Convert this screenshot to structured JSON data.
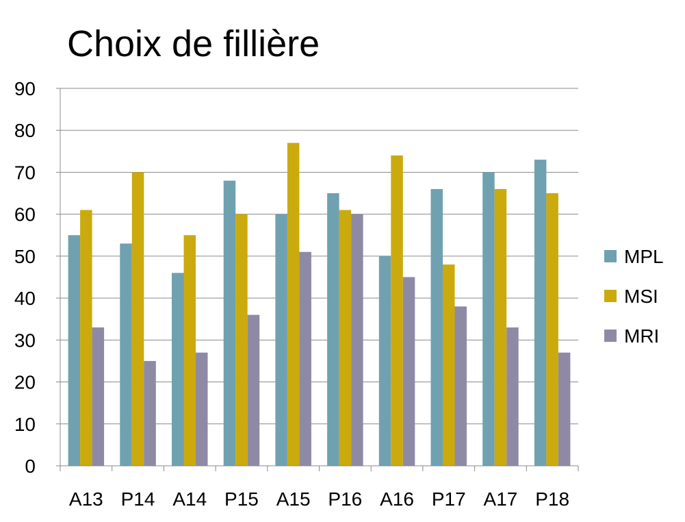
{
  "chart_data": {
    "type": "bar",
    "title": "Choix de fillière",
    "xlabel": "",
    "ylabel": "",
    "categories": [
      "A13",
      "P14",
      "A14",
      "P15",
      "A15",
      "P16",
      "A16",
      "P17",
      "A17",
      "P18"
    ],
    "series": [
      {
        "name": "MPL",
        "color": "#6fa1b1",
        "values": [
          55,
          53,
          46,
          68,
          60,
          65,
          50,
          66,
          70,
          73
        ]
      },
      {
        "name": "MSI",
        "color": "#cbaa0d",
        "values": [
          61,
          70,
          55,
          60,
          77,
          61,
          74,
          48,
          66,
          65
        ]
      },
      {
        "name": "MRI",
        "color": "#8e8aa5",
        "values": [
          33,
          25,
          27,
          36,
          51,
          60,
          45,
          38,
          33,
          27
        ]
      }
    ],
    "ylim": [
      0,
      90
    ],
    "yticks": [
      "0",
      "10",
      "20",
      "30",
      "40",
      "50",
      "60",
      "70",
      "80",
      "90"
    ],
    "grid": true,
    "legend": "right"
  }
}
